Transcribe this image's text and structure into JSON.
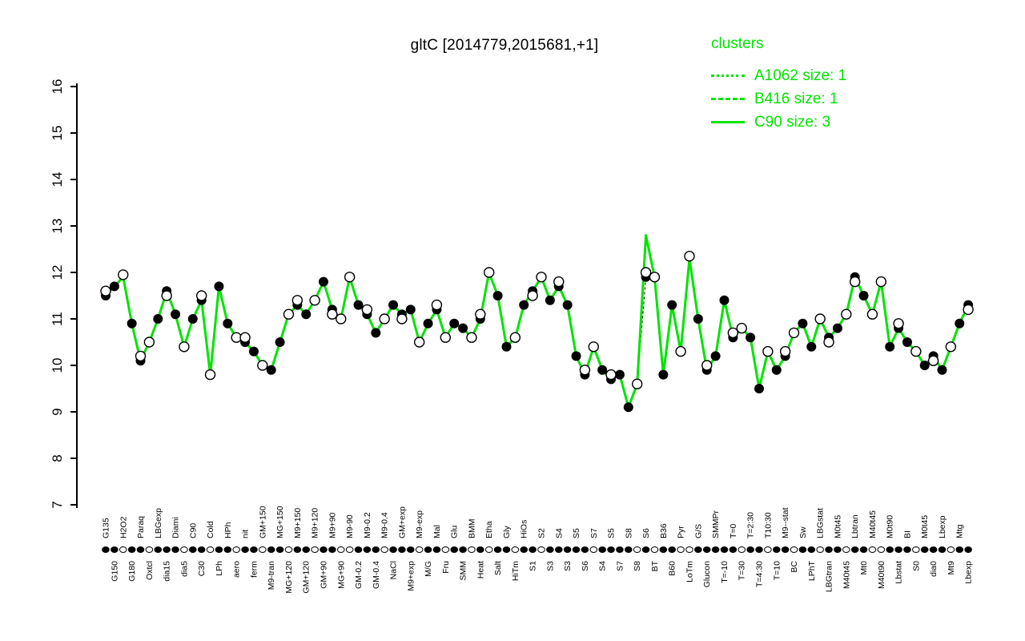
{
  "title": "gltC [2014779,2015681,+1]",
  "legend": {
    "header": "clusters",
    "items": [
      {
        "label": "A1062 size: 1",
        "style": "dotted"
      },
      {
        "label": "B416 size: 1",
        "style": "dashed"
      },
      {
        "label": "C90 size: 3",
        "style": "solid"
      }
    ]
  },
  "colors": {
    "cluster_line": "#00e400",
    "point_fill": "#000000",
    "point_open_fill": "#ffffff",
    "axis": "#000000"
  },
  "chart_data": {
    "type": "line",
    "title": "gltC [2014779,2015681,+1]",
    "ylabel": "",
    "xlabel": "",
    "ylim": [
      7,
      16
    ],
    "yticks": [
      7,
      8,
      9,
      10,
      11,
      12,
      13,
      14,
      15,
      16
    ],
    "legend_position": "top-right",
    "grid": false,
    "categories": [
      "G135",
      "G150",
      "H2O2",
      "G180",
      "Paraq",
      "Oxtcl",
      "LBGexp",
      "dia15",
      "Diami",
      "dia5",
      "C90",
      "C30",
      "Cold",
      "LPh",
      "HPh",
      "aero",
      "nit",
      "ferm",
      "GM+150",
      "M9-tran",
      "MG+150",
      "MG+120",
      "M9+150",
      "GM+120",
      "M9+120",
      "GM+90",
      "M9+90",
      "MG+90",
      "M9-90",
      "GM-0.2",
      "M9-0.2",
      "GM-0.4",
      "M9-0.4",
      "NaCl",
      "GM+exp",
      "M9+exp",
      "M9-exp",
      "M/G",
      "Mal",
      "Fru",
      "Glu",
      "SMM",
      "BMM",
      "Heat",
      "Etha",
      "Salt",
      "Gly",
      "HiTm",
      "HiOs",
      "S1",
      "S2",
      "S3",
      "S4",
      "S3",
      "S5",
      "S6",
      "S7",
      "S4",
      "S5",
      "S7",
      "S8",
      "S8",
      "S6",
      "BT",
      "B36",
      "B60",
      "Pyr",
      "LoTm",
      "G/S",
      "Glucon",
      "SMMPr",
      "T=-10",
      "T=0",
      "T=30",
      "T=2:30",
      "T=4:30",
      "T10:30",
      "T=10",
      "M9--stat",
      "BC",
      "Sw",
      "LPhT",
      "LBGstat",
      "LBGtran",
      "M0t45",
      "M40t45",
      "Lbtran",
      "Mt0",
      "M40t45",
      "M40t90",
      "M0t90",
      "Lbstat",
      "BI",
      "S0",
      "M0t45",
      "dia0",
      "Lbexp",
      "Mt9",
      "Mtg",
      "Lbexp"
    ],
    "series": [
      {
        "name": "C90 size: 3",
        "type": "line",
        "values": [
          11.5,
          11.7,
          11.9,
          10.9,
          10.1,
          10.5,
          11.0,
          11.6,
          11.1,
          10.4,
          11.0,
          11.4,
          9.8,
          11.7,
          10.9,
          10.6,
          10.5,
          10.3,
          10.0,
          9.9,
          10.5,
          11.1,
          11.3,
          11.1,
          11.4,
          11.8,
          11.2,
          11.0,
          11.9,
          11.3,
          11.1,
          10.7,
          11.0,
          11.3,
          11.1,
          11.2,
          10.5,
          10.9,
          11.2,
          10.6,
          10.9,
          10.8,
          10.6,
          11.0,
          12.0,
          11.5,
          10.4,
          10.6,
          11.3,
          11.6,
          11.9,
          11.4,
          11.7,
          11.3,
          10.2,
          9.8,
          10.4,
          9.9,
          9.7,
          9.8,
          9.1,
          9.6,
          12.8,
          11.9,
          9.8,
          11.3,
          10.3,
          12.3,
          11.0,
          9.9,
          10.2,
          11.4,
          10.6,
          10.8,
          10.6,
          9.5,
          10.3,
          9.9,
          10.2,
          10.7,
          10.9,
          10.4,
          11.0,
          10.6,
          10.8,
          11.1,
          11.9,
          11.5,
          11.1,
          11.8,
          10.4,
          10.8,
          10.5,
          10.3,
          10.0,
          10.2,
          9.9,
          10.4,
          10.9,
          11.3
        ]
      },
      {
        "name": "filled points",
        "type": "scatter-filled",
        "values": [
          11.5,
          11.7,
          null,
          10.9,
          10.1,
          null,
          11.0,
          11.6,
          11.1,
          null,
          11.0,
          11.4,
          null,
          11.7,
          10.9,
          null,
          10.5,
          10.3,
          null,
          9.9,
          10.5,
          null,
          11.3,
          11.1,
          null,
          11.8,
          11.2,
          null,
          null,
          11.3,
          11.1,
          10.7,
          null,
          11.3,
          11.1,
          11.2,
          null,
          10.9,
          11.2,
          null,
          10.9,
          10.8,
          null,
          11.0,
          null,
          11.5,
          10.4,
          null,
          11.3,
          11.6,
          null,
          11.4,
          11.7,
          11.3,
          10.2,
          9.8,
          null,
          9.9,
          9.7,
          9.8,
          9.1,
          null,
          11.9,
          null,
          9.8,
          11.3,
          null,
          null,
          11.0,
          9.9,
          10.2,
          11.4,
          10.6,
          null,
          10.6,
          9.5,
          null,
          9.9,
          10.2,
          null,
          10.9,
          10.4,
          null,
          10.6,
          10.8,
          null,
          11.9,
          11.5,
          null,
          null,
          10.4,
          10.8,
          10.5,
          null,
          10.0,
          10.2,
          9.9,
          null,
          10.9,
          11.3
        ]
      },
      {
        "name": "open points",
        "type": "scatter-open",
        "values": [
          11.6,
          null,
          11.95,
          null,
          10.2,
          10.5,
          null,
          11.5,
          null,
          10.4,
          null,
          11.5,
          9.8,
          null,
          null,
          10.6,
          10.6,
          null,
          10.0,
          null,
          null,
          11.1,
          11.4,
          null,
          11.4,
          null,
          11.1,
          11.0,
          11.9,
          null,
          11.2,
          null,
          11.0,
          null,
          11.0,
          null,
          10.5,
          null,
          11.3,
          10.6,
          null,
          null,
          10.6,
          11.1,
          12.0,
          null,
          null,
          10.6,
          null,
          11.5,
          11.9,
          null,
          11.8,
          null,
          null,
          9.9,
          10.4,
          null,
          9.8,
          null,
          null,
          9.6,
          12.0,
          11.9,
          null,
          null,
          10.3,
          12.35,
          null,
          10.0,
          null,
          null,
          10.7,
          10.8,
          null,
          null,
          10.3,
          null,
          10.3,
          10.7,
          null,
          null,
          11.0,
          10.5,
          null,
          11.1,
          11.8,
          null,
          11.1,
          11.8,
          null,
          10.9,
          null,
          10.3,
          null,
          10.1,
          null,
          10.4,
          null,
          11.2
        ]
      }
    ]
  }
}
